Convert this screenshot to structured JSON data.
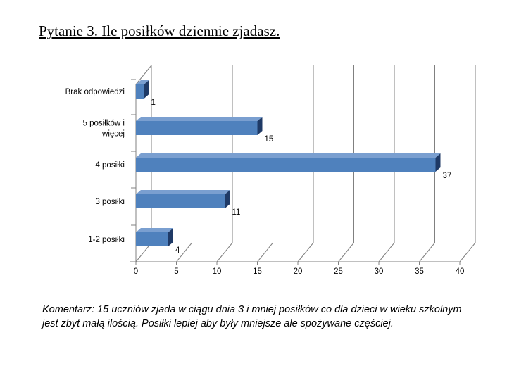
{
  "slide": {
    "title": "Pytanie 3. Ile posiłków dziennie zjadasz.",
    "comment": "Komentarz: 15 uczniów zjada w ciągu dnia 3 i mniej posiłków co dla dzieci w wieku szkolnym jest zbyt małą ilością. Posiłki lepiej aby były mniejsze ale spożywane częściej."
  },
  "chart_data": {
    "type": "bar",
    "orientation": "horizontal",
    "style": "3d",
    "categories": [
      [
        "Brak odpowiedzi"
      ],
      [
        "5 posiłków i",
        "więcej"
      ],
      [
        "4  posiłki"
      ],
      [
        "3 posiłki"
      ],
      [
        "1-2 posiłki"
      ]
    ],
    "values": [
      1,
      15,
      37,
      11,
      4
    ],
    "data_labels": [
      "1",
      "15",
      "37",
      "11",
      "4"
    ],
    "xlim": [
      0,
      40
    ],
    "x_ticks": [
      0,
      5,
      10,
      15,
      20,
      25,
      30,
      35,
      40
    ],
    "x_tick_labels": [
      "0",
      "5",
      "10",
      "15",
      "20",
      "25",
      "30",
      "35",
      "40"
    ],
    "grid": true,
    "legend": "none",
    "colors": {
      "bar_front": "#4f81bd",
      "bar_top": "#7a9fd0",
      "bar_side": "#1f3a66",
      "grid": "#808080"
    }
  }
}
